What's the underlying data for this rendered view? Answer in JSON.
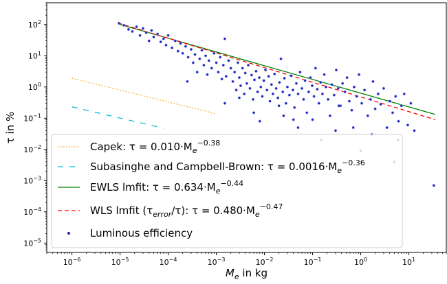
{
  "chart_data": {
    "type": "scatter",
    "x_scale": "log",
    "y_scale": "log",
    "xlabel_base": "M",
    "xlabel_sub": "e",
    "xlabel_tail": " in kg",
    "ylabel": "τ in %",
    "xlim": [
      3e-07,
      60
    ],
    "ylim": [
      5e-06,
      500
    ],
    "grid": false,
    "legend_placement": "lower-left",
    "x_ticks": [
      {
        "value": 1e-06,
        "base": "10",
        "exp": "−6"
      },
      {
        "value": 1e-05,
        "base": "10",
        "exp": "−5"
      },
      {
        "value": 0.0001,
        "base": "10",
        "exp": "−4"
      },
      {
        "value": 0.001,
        "base": "10",
        "exp": "−3"
      },
      {
        "value": 0.01,
        "base": "10",
        "exp": "−2"
      },
      {
        "value": 0.1,
        "base": "10",
        "exp": "−1"
      },
      {
        "value": 1,
        "base": "10",
        "exp": "0"
      },
      {
        "value": 10,
        "base": "10",
        "exp": "1"
      }
    ],
    "y_ticks": [
      {
        "value": 1e-05,
        "base": "10",
        "exp": "−5"
      },
      {
        "value": 0.0001,
        "base": "10",
        "exp": "−4"
      },
      {
        "value": 0.001,
        "base": "10",
        "exp": "−3"
      },
      {
        "value": 0.01,
        "base": "10",
        "exp": "−2"
      },
      {
        "value": 0.1,
        "base": "10",
        "exp": "−1"
      },
      {
        "value": 1,
        "base": "10",
        "exp": "0"
      },
      {
        "value": 10,
        "base": "10",
        "exp": "1"
      },
      {
        "value": 100,
        "base": "10",
        "exp": "2"
      }
    ],
    "series": [
      {
        "name": "Capek: τ = 0.010·Me^−0.38",
        "legend_prefix": "Capek: τ = 0.010·M",
        "legend_sub": "e",
        "legend_exp": "−0.38",
        "kind": "line",
        "style": "dotted",
        "color": "#ffa500",
        "coef": 0.01,
        "exponent": -0.38,
        "x_range": [
          1e-06,
          0.001
        ]
      },
      {
        "name": "Subasinghe and Campbell-Brown: τ = 0.0016·Me^−0.36",
        "legend_prefix": "Subasinghe and Campbell-Brown: τ = 0.0016·M",
        "legend_sub": "e",
        "legend_exp": "−0.36",
        "kind": "line",
        "style": "dashed",
        "color": "#00bcd4",
        "coef": 0.0016,
        "exponent": -0.36,
        "x_range": [
          1e-06,
          8e-05
        ]
      },
      {
        "name": "EWLS lmfit: τ = 0.634·Me^−0.44",
        "legend_prefix": "EWLS lmfit: τ = 0.634·M",
        "legend_sub": "e",
        "legend_exp": "−0.44",
        "kind": "line",
        "style": "solid",
        "color": "#008000",
        "coef": 0.634,
        "exponent": -0.44,
        "x_range": [
          9e-06,
          35
        ]
      },
      {
        "name": "WLS lmfit (τerror/τ): τ = 0.480·Me^−0.47",
        "legend_prefix": "WLS lmfit (τ",
        "legend_sub1": "error",
        "legend_mid": "/τ): τ = 0.480·M",
        "legend_sub": "e",
        "legend_exp": "−0.47",
        "kind": "line",
        "style": "dashed",
        "color": "#ff0000",
        "coef": 0.48,
        "exponent": -0.47,
        "x_range": [
          9e-06,
          35
        ]
      },
      {
        "name": "Luminous efficiency",
        "legend_prefix": "Luminous efficiency",
        "kind": "scatter",
        "color": "#1f1fbf",
        "points": [
          [
            9.5e-06,
            110
          ],
          [
            1.2e-05,
            95
          ],
          [
            1.5e-05,
            70
          ],
          [
            1.8e-05,
            60
          ],
          [
            2.2e-05,
            85
          ],
          [
            2.6e-05,
            45
          ],
          [
            3e-05,
            75
          ],
          [
            3.5e-05,
            55
          ],
          [
            4e-05,
            30
          ],
          [
            4.5e-05,
            65
          ],
          [
            5e-05,
            40
          ],
          [
            6e-05,
            50
          ],
          [
            7e-05,
            28
          ],
          [
            8e-05,
            35
          ],
          [
            9e-05,
            22
          ],
          [
            0.0001,
            45
          ],
          [
            0.00012,
            18
          ],
          [
            0.00014,
            30
          ],
          [
            0.00016,
            14
          ],
          [
            0.00018,
            25
          ],
          [
            0.0002,
            12
          ],
          [
            0.00023,
            20
          ],
          [
            0.00026,
            9
          ],
          [
            0.0003,
            16
          ],
          [
            0.00033,
            6
          ],
          [
            0.00036,
            11
          ],
          [
            0.0004,
            3
          ],
          [
            0.00045,
            8
          ],
          [
            0.0005,
            15
          ],
          [
            0.00055,
            5
          ],
          [
            0.0006,
            10
          ],
          [
            0.00065,
            2.5
          ],
          [
            0.0007,
            7
          ],
          [
            0.0008,
            4
          ],
          [
            0.0009,
            12
          ],
          [
            0.001,
            6
          ],
          [
            0.0011,
            3
          ],
          [
            0.0012,
            9
          ],
          [
            0.0013,
            1.8
          ],
          [
            0.0014,
            5
          ],
          [
            0.0015,
            35
          ],
          [
            0.0016,
            2.2
          ],
          [
            0.0018,
            7
          ],
          [
            0.002,
            4
          ],
          [
            0.0022,
            1.5
          ],
          [
            0.0024,
            3
          ],
          [
            0.0026,
            0.8
          ],
          [
            0.0028,
            6
          ],
          [
            0.003,
            2
          ],
          [
            0.0032,
            1.1
          ],
          [
            0.0035,
            4
          ],
          [
            0.0038,
            0.6
          ],
          [
            0.004,
            2.8
          ],
          [
            0.0043,
            1.3
          ],
          [
            0.0046,
            5
          ],
          [
            0.005,
            0.9
          ],
          [
            0.0054,
            2.4
          ],
          [
            0.0058,
            0.4
          ],
          [
            0.0062,
            1.7
          ],
          [
            0.0067,
            3.2
          ],
          [
            0.0072,
            0.7
          ],
          [
            0.0078,
            2
          ],
          [
            0.0084,
            1
          ],
          [
            0.009,
            0.5
          ],
          [
            0.0097,
            1.6
          ],
          [
            0.0105,
            3.5
          ],
          [
            0.0113,
            0.8
          ],
          [
            0.0122,
            2.2
          ],
          [
            0.013,
            0.35
          ],
          [
            0.014,
            1.2
          ],
          [
            0.015,
            0.6
          ],
          [
            0.0162,
            2.6
          ],
          [
            0.0175,
            0.9
          ],
          [
            0.019,
            0.45
          ],
          [
            0.0205,
            1.4
          ],
          [
            0.022,
            8
          ],
          [
            0.024,
            0.7
          ],
          [
            0.026,
            1.9
          ],
          [
            0.028,
            0.3
          ],
          [
            0.03,
            1
          ],
          [
            0.033,
            0.55
          ],
          [
            0.036,
            2.3
          ],
          [
            0.039,
            0.8
          ],
          [
            0.042,
            0.22
          ],
          [
            0.046,
            1.3
          ],
          [
            0.05,
            0.6
          ],
          [
            0.055,
            3
          ],
          [
            0.06,
            0.9
          ],
          [
            0.065,
            0.4
          ],
          [
            0.07,
            1.6
          ],
          [
            0.076,
            0.15
          ],
          [
            0.083,
            0.7
          ],
          [
            0.09,
            2
          ],
          [
            0.098,
            1.1
          ],
          [
            0.107,
            0.5
          ],
          [
            0.115,
            4
          ],
          [
            0.125,
            0.85
          ],
          [
            0.135,
            0.3
          ],
          [
            0.147,
            1.4
          ],
          [
            0.16,
            0.6
          ],
          [
            0.175,
            2.5
          ],
          [
            0.19,
            1
          ],
          [
            0.21,
            0.4
          ],
          [
            0.23,
            0.12
          ],
          [
            0.25,
            1.2
          ],
          [
            0.28,
            0.55
          ],
          [
            0.31,
            3.5
          ],
          [
            0.34,
            0.9
          ],
          [
            0.38,
            0.25
          ],
          [
            0.42,
            1.3
          ],
          [
            0.47,
            0.7
          ],
          [
            0.52,
            2
          ],
          [
            0.58,
            0.35
          ],
          [
            0.65,
            0.18
          ],
          [
            0.73,
            1
          ],
          [
            0.82,
            0.5
          ],
          [
            0.92,
            2.5
          ],
          [
            1.05,
            0.3
          ],
          [
            1.2,
            0.8
          ],
          [
            1.4,
            0.12
          ],
          [
            1.6,
            0.4
          ],
          [
            1.8,
            1.5
          ],
          [
            2.0,
            0.2
          ],
          [
            2.3,
            0.6
          ],
          [
            2.6,
            0.28
          ],
          [
            3.0,
            0.9
          ],
          [
            3.5,
            0.05
          ],
          [
            4.0,
            0.35
          ],
          [
            4.6,
            0.15
          ],
          [
            5.3,
            0.5
          ],
          [
            6.1,
            0.08
          ],
          [
            7.0,
            0.25
          ],
          [
            8.0,
            0.6
          ],
          [
            9.5,
            0.06
          ],
          [
            11,
            0.3
          ],
          [
            13,
            0.04
          ],
          [
            0.0015,
            0.3
          ],
          [
            0.008,
            0.08
          ],
          [
            0.025,
            0.12
          ],
          [
            0.05,
            0.05
          ],
          [
            0.15,
            0.02
          ],
          [
            0.35,
            0.25
          ],
          [
            1.0,
            0.009
          ],
          [
            5.0,
            0.004
          ],
          [
            33,
            0.0007
          ],
          [
            0.1,
            0.09
          ],
          [
            0.02,
            0.25
          ],
          [
            0.006,
            0.15
          ],
          [
            0.003,
            0.45
          ],
          [
            0.04,
            0.09
          ],
          [
            0.7,
            0.05
          ],
          [
            1.7,
            0.03
          ],
          [
            0.3,
            0.04
          ],
          [
            6.0,
            0.02
          ],
          [
            0.00025,
            1.5
          ]
        ]
      }
    ]
  }
}
